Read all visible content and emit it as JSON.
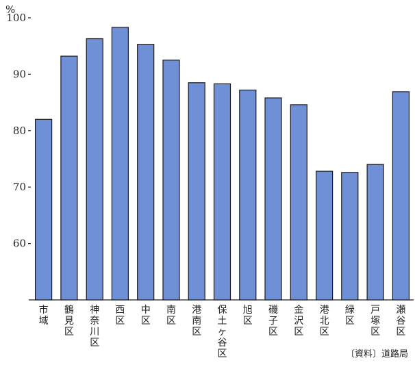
{
  "chart_data": {
    "type": "bar",
    "title": "",
    "xlabel": "",
    "ylabel": "",
    "unit": "%",
    "ylim": [
      50,
      100
    ],
    "yticks": [
      60,
      70,
      80,
      90,
      100
    ],
    "grid": false,
    "categories": [
      "市域",
      "鶴見区",
      "神奈川区",
      "西区",
      "中区",
      "南区",
      "港南区",
      "保土ヶ谷区",
      "旭区",
      "磯子区",
      "金沢区",
      "港北区",
      "緑区",
      "戸塚区",
      "瀬谷区"
    ],
    "values": [
      82.0,
      93.2,
      96.3,
      98.3,
      95.3,
      92.5,
      88.5,
      88.3,
      87.2,
      85.8,
      84.6,
      72.8,
      72.6,
      74.0,
      86.9
    ],
    "source": "〔資料〕道路局",
    "colors": {
      "bar_fill": "#6f8fd6",
      "bar_stroke": "#1a1a1a",
      "text": "#222222"
    }
  }
}
